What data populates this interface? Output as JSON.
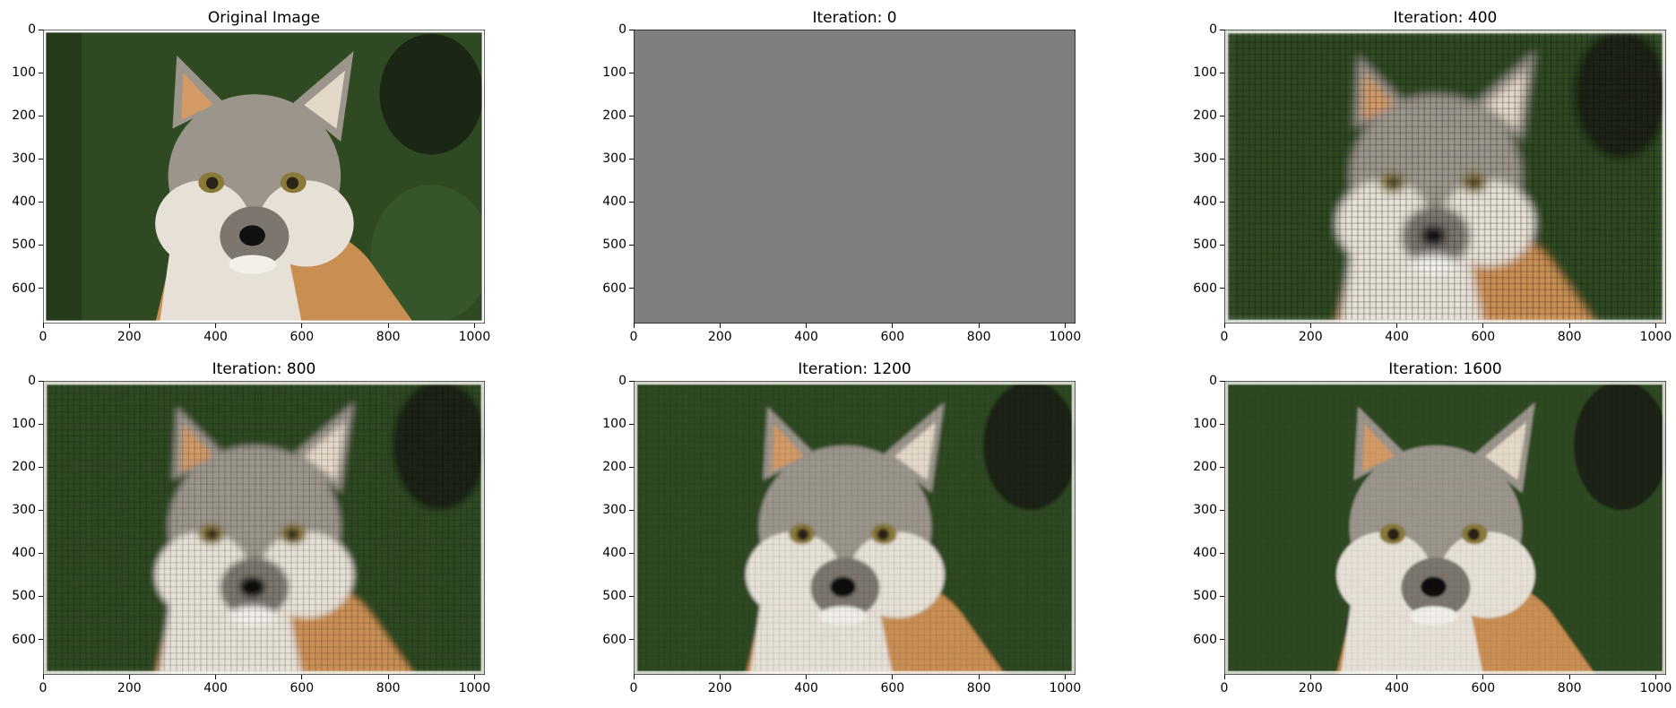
{
  "figure": {
    "panels": [
      {
        "title": "Original Image",
        "quality": "original",
        "row": 0,
        "col": 0
      },
      {
        "title": "Iteration: 0",
        "quality": "blank",
        "row": 0,
        "col": 1
      },
      {
        "title": "Iteration: 400",
        "quality": "very-blurry",
        "row": 0,
        "col": 2
      },
      {
        "title": "Iteration: 800",
        "quality": "blurry",
        "row": 1,
        "col": 0
      },
      {
        "title": "Iteration: 1200",
        "quality": "moderate",
        "row": 1,
        "col": 1
      },
      {
        "title": "Iteration: 1600",
        "quality": "good",
        "row": 1,
        "col": 2
      }
    ],
    "x_ticks": [
      "0",
      "200",
      "400",
      "600",
      "800",
      "1000"
    ],
    "x_tick_values": [
      0,
      200,
      400,
      600,
      800,
      1000
    ],
    "y_ticks": [
      "0",
      "100",
      "200",
      "300",
      "400",
      "500",
      "600"
    ],
    "y_tick_values": [
      0,
      100,
      200,
      300,
      400,
      500,
      600
    ],
    "image_extent": {
      "x": [
        0,
        1024
      ],
      "y": [
        0,
        682
      ]
    },
    "colors": {
      "background": "#2f4a22",
      "fur_light": "#e6e0d6",
      "fur_gray": "#9b958c",
      "fur_orange": "#c98e52",
      "eye": "#2a2418",
      "nose": "#111111",
      "blank_gray": "#7f7e80"
    },
    "subject": "fox-portrait"
  }
}
